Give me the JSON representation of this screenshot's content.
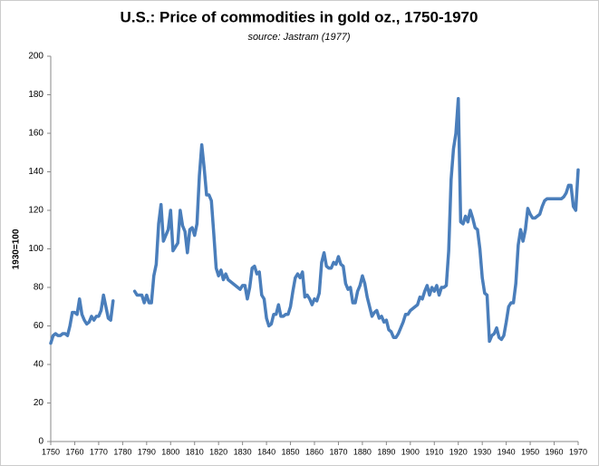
{
  "chart_data": {
    "type": "line",
    "title": "U.S.: Price of commodities in gold oz., 1750-1970",
    "subtitle": "source: Jastram (1977)",
    "y_label": "1930=100",
    "x": [
      1750,
      1751,
      1752,
      1753,
      1754,
      1755,
      1756,
      1757,
      1758,
      1759,
      1760,
      1761,
      1762,
      1763,
      1764,
      1765,
      1766,
      1767,
      1768,
      1769,
      1770,
      1771,
      1772,
      1773,
      1774,
      1775,
      1776,
      1777,
      1778,
      1779,
      1780,
      1781,
      1782,
      1783,
      1784,
      1785,
      1786,
      1787,
      1788,
      1789,
      1790,
      1791,
      1792,
      1793,
      1794,
      1795,
      1796,
      1797,
      1798,
      1799,
      1800,
      1801,
      1802,
      1803,
      1804,
      1805,
      1806,
      1807,
      1808,
      1809,
      1810,
      1811,
      1812,
      1813,
      1814,
      1815,
      1816,
      1817,
      1818,
      1819,
      1820,
      1821,
      1822,
      1823,
      1824,
      1825,
      1826,
      1827,
      1828,
      1829,
      1830,
      1831,
      1832,
      1833,
      1834,
      1835,
      1836,
      1837,
      1838,
      1839,
      1840,
      1841,
      1842,
      1843,
      1844,
      1845,
      1846,
      1847,
      1848,
      1849,
      1850,
      1851,
      1852,
      1853,
      1854,
      1855,
      1856,
      1857,
      1858,
      1859,
      1860,
      1861,
      1862,
      1863,
      1864,
      1865,
      1866,
      1867,
      1868,
      1869,
      1870,
      1871,
      1872,
      1873,
      1874,
      1875,
      1876,
      1877,
      1878,
      1879,
      1880,
      1881,
      1882,
      1883,
      1884,
      1885,
      1886,
      1887,
      1888,
      1889,
      1890,
      1891,
      1892,
      1893,
      1894,
      1895,
      1896,
      1897,
      1898,
      1899,
      1900,
      1901,
      1902,
      1903,
      1904,
      1905,
      1906,
      1907,
      1908,
      1909,
      1910,
      1911,
      1912,
      1913,
      1914,
      1915,
      1916,
      1917,
      1918,
      1919,
      1920,
      1921,
      1922,
      1923,
      1924,
      1925,
      1926,
      1927,
      1928,
      1929,
      1930,
      1931,
      1932,
      1933,
      1934,
      1935,
      1936,
      1937,
      1938,
      1939,
      1940,
      1941,
      1942,
      1943,
      1944,
      1945,
      1946,
      1947,
      1948,
      1949,
      1950,
      1951,
      1952,
      1953,
      1954,
      1955,
      1956,
      1957,
      1958,
      1959,
      1960,
      1961,
      1962,
      1963,
      1964,
      1965,
      1966,
      1967,
      1968,
      1969,
      1970
    ],
    "series": [
      {
        "name": "Price",
        "color": "#4a7ebb",
        "values": [
          51,
          55,
          56,
          55,
          55,
          56,
          56,
          55,
          60,
          67,
          67,
          66,
          74,
          66,
          63,
          61,
          62,
          65,
          63,
          65,
          65,
          68,
          76,
          70,
          64,
          63,
          73,
          null,
          null,
          null,
          null,
          null,
          null,
          null,
          null,
          78,
          76,
          76,
          76,
          72,
          76,
          72,
          72,
          86,
          92,
          113,
          123,
          104,
          107,
          110,
          120,
          99,
          101,
          103,
          120,
          112,
          109,
          98,
          110,
          111,
          107,
          113,
          138,
          154,
          142,
          128,
          128,
          125,
          108,
          90,
          86,
          89,
          84,
          87,
          84,
          83,
          82,
          81,
          80,
          79,
          81,
          81,
          74,
          80,
          90,
          91,
          87,
          88,
          76,
          74,
          64,
          60,
          61,
          66,
          66,
          71,
          65,
          65,
          66,
          66,
          70,
          78,
          85,
          87,
          85,
          88,
          75,
          76,
          74,
          71,
          74,
          73,
          77,
          93,
          98,
          91,
          90,
          90,
          93,
          92,
          96,
          92,
          91,
          82,
          79,
          80,
          72,
          72,
          78,
          81,
          86,
          82,
          75,
          70,
          65,
          67,
          68,
          64,
          65,
          62,
          63,
          58,
          57,
          54,
          54,
          56,
          59,
          62,
          66,
          66,
          68,
          69,
          70,
          71,
          75,
          74,
          78,
          81,
          76,
          80,
          78,
          81,
          76,
          80,
          80,
          81,
          99,
          136,
          152,
          160,
          178,
          114,
          113,
          117,
          114,
          120,
          116,
          111,
          110,
          100,
          85,
          77,
          76,
          52,
          55,
          56,
          59,
          54,
          53,
          55,
          62,
          70,
          72,
          72,
          82,
          102,
          110,
          104,
          110,
          121,
          118,
          116,
          116,
          117,
          118,
          122,
          125,
          126,
          126,
          126,
          126,
          126,
          126,
          126,
          127,
          129,
          133,
          133,
          122,
          120,
          141
        ]
      }
    ],
    "xlim": [
      1750,
      1970
    ],
    "xticks": [
      1750,
      1760,
      1770,
      1780,
      1790,
      1800,
      1810,
      1820,
      1830,
      1840,
      1850,
      1860,
      1870,
      1880,
      1890,
      1900,
      1910,
      1920,
      1930,
      1940,
      1950,
      1960,
      1970
    ],
    "ylim": [
      0,
      200
    ],
    "yticks": [
      0,
      20,
      40,
      60,
      80,
      100,
      120,
      140,
      160,
      180,
      200
    ],
    "grid": false
  }
}
